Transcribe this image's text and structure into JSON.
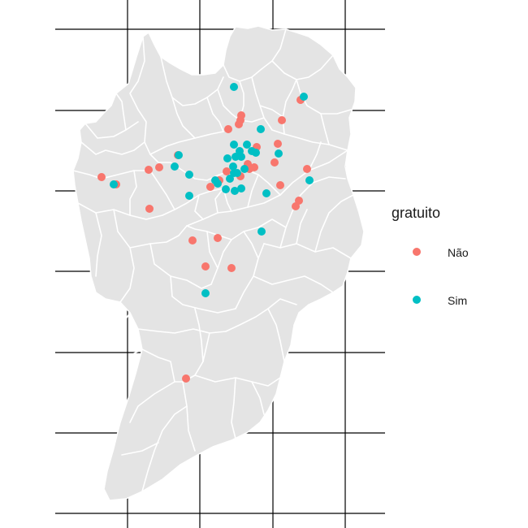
{
  "legend": {
    "title": "gratuito",
    "items": [
      {
        "label": "Não",
        "color": "#F8766D"
      },
      {
        "label": "Sim",
        "color": "#00BFC4"
      }
    ]
  },
  "colors": {
    "region_fill": "#E4E4E4",
    "region_border": "#FFFFFF",
    "graticule": "#000000"
  },
  "points": {
    "Nao": [
      [
        297,
        142
      ],
      [
        296,
        148
      ],
      [
        294,
        153
      ],
      [
        281,
        159
      ],
      [
        347,
        148
      ],
      [
        370,
        123
      ],
      [
        342,
        177
      ],
      [
        316,
        181
      ],
      [
        219,
        191
      ],
      [
        196,
        206
      ],
      [
        183,
        209
      ],
      [
        125,
        218
      ],
      [
        143,
        227
      ],
      [
        184,
        257
      ],
      [
        338,
        200
      ],
      [
        305,
        202
      ],
      [
        313,
        206
      ],
      [
        307,
        208
      ],
      [
        296,
        217
      ],
      [
        259,
        230
      ],
      [
        270,
        222
      ],
      [
        279,
        211
      ],
      [
        345,
        228
      ],
      [
        378,
        208
      ],
      [
        368,
        247
      ],
      [
        364,
        254
      ],
      [
        237,
        296
      ],
      [
        268,
        293
      ],
      [
        253,
        328
      ],
      [
        285,
        330
      ],
      [
        229,
        466
      ]
    ],
    "Sim": [
      [
        288,
        107
      ],
      [
        374,
        119
      ],
      [
        321,
        159
      ],
      [
        288,
        178
      ],
      [
        304,
        178
      ],
      [
        295,
        186
      ],
      [
        310,
        186
      ],
      [
        315,
        188
      ],
      [
        297,
        193
      ],
      [
        280,
        195
      ],
      [
        290,
        193
      ],
      [
        287,
        205
      ],
      [
        292,
        213
      ],
      [
        301,
        208
      ],
      [
        283,
        220
      ],
      [
        288,
        213
      ],
      [
        343,
        189
      ],
      [
        220,
        191
      ],
      [
        215,
        205
      ],
      [
        233,
        215
      ],
      [
        265,
        222
      ],
      [
        268,
        226
      ],
      [
        278,
        233
      ],
      [
        289,
        235
      ],
      [
        297,
        232
      ],
      [
        233,
        241
      ],
      [
        328,
        238
      ],
      [
        381,
        222
      ],
      [
        140,
        227
      ],
      [
        322,
        285
      ],
      [
        253,
        361
      ]
    ]
  }
}
